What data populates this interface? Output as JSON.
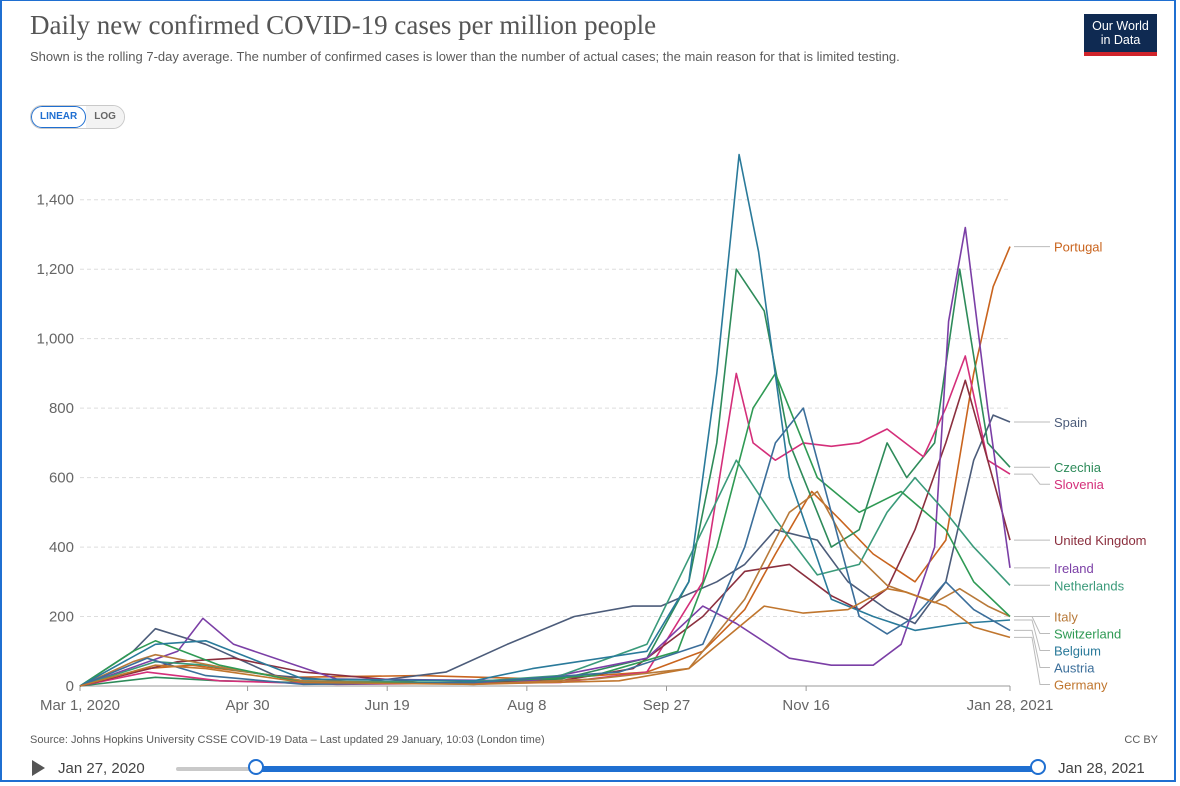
{
  "header": {
    "title": "Daily new confirmed COVID-19 cases per million people",
    "subtitle": "Shown is the rolling 7-day average. The number of confirmed cases is lower than the number of actual cases; the main reason for that is limited testing.",
    "logo_line1": "Our World",
    "logo_line2": "in Data"
  },
  "scale_toggle": {
    "linear_label": "LINEAR",
    "log_label": "LOG",
    "selected": "LINEAR"
  },
  "footer": {
    "source": "Source: Johns Hopkins University CSSE COVID-19 Data – Last updated 29 January, 10:03 (London time)",
    "license": "CC BY"
  },
  "timeline": {
    "start_label": "Jan 27, 2020",
    "end_label": "Jan 28, 2021",
    "range_start_fraction": 0.093,
    "range_end_fraction": 1.0
  },
  "colors": {
    "accent": "#1f6fd1",
    "grid": "#dddddd",
    "axis": "#999999"
  },
  "chart_data": {
    "type": "line",
    "title": "Daily new confirmed COVID-19 cases per million people",
    "xlabel": "",
    "ylabel": "",
    "x_range": [
      "2020-03-01",
      "2021-01-28"
    ],
    "ylim": [
      0,
      1500
    ],
    "y_ticks": [
      0,
      200,
      400,
      600,
      800,
      1000,
      1200,
      1400
    ],
    "y_tick_labels": [
      "0",
      "200",
      "400",
      "600",
      "800",
      "1,000",
      "1,200",
      "1,400"
    ],
    "x_ticks": [
      "2020-03-01",
      "2020-04-30",
      "2020-06-19",
      "2020-08-08",
      "2020-09-27",
      "2020-11-16",
      "2021-01-28"
    ],
    "x_tick_labels": [
      "Mar 1, 2020",
      "Apr 30",
      "Jun 19",
      "Aug 8",
      "Sep 27",
      "Nov 16",
      "Jan 28, 2021"
    ],
    "grid": "horizontal dashed",
    "legend": "right, line-end labels",
    "series": [
      {
        "name": "Portugal",
        "color": "#c9641e",
        "x": [
          "2020-03-01",
          "2020-03-25",
          "2020-04-10",
          "2020-05-15",
          "2020-07-01",
          "2020-08-15",
          "2020-09-20",
          "2020-10-10",
          "2020-10-25",
          "2020-11-05",
          "2020-11-18",
          "2020-11-28",
          "2020-12-10",
          "2020-12-25",
          "2021-01-05",
          "2021-01-15",
          "2021-01-22",
          "2021-01-28"
        ],
        "y": [
          0,
          50,
          60,
          25,
          30,
          20,
          40,
          100,
          220,
          380,
          560,
          480,
          380,
          300,
          420,
          900,
          1150,
          1265
        ]
      },
      {
        "name": "Spain",
        "color": "#4c5c7a",
        "x": [
          "2020-03-01",
          "2020-03-20",
          "2020-03-28",
          "2020-04-15",
          "2020-05-10",
          "2020-06-10",
          "2020-07-10",
          "2020-08-01",
          "2020-08-25",
          "2020-09-15",
          "2020-09-25",
          "2020-10-15",
          "2020-10-25",
          "2020-11-05",
          "2020-11-20",
          "2020-12-01",
          "2020-12-15",
          "2020-12-25",
          "2021-01-05",
          "2021-01-15",
          "2021-01-22",
          "2021-01-28"
        ],
        "y": [
          0,
          100,
          165,
          120,
          30,
          10,
          40,
          120,
          200,
          230,
          230,
          300,
          350,
          450,
          420,
          300,
          220,
          180,
          300,
          650,
          780,
          760
        ]
      },
      {
        "name": "Czechia",
        "color": "#2e8b5a",
        "x": [
          "2020-03-01",
          "2020-03-28",
          "2020-04-20",
          "2020-05-20",
          "2020-07-10",
          "2020-08-20",
          "2020-09-20",
          "2020-10-05",
          "2020-10-15",
          "2020-10-22",
          "2020-11-01",
          "2020-11-10",
          "2020-11-25",
          "2020-12-05",
          "2020-12-15",
          "2020-12-22",
          "2021-01-01",
          "2021-01-10",
          "2021-01-20",
          "2021-01-28"
        ],
        "y": [
          0,
          25,
          15,
          10,
          10,
          20,
          80,
          300,
          700,
          1200,
          1080,
          700,
          400,
          450,
          700,
          600,
          700,
          1200,
          700,
          630
        ]
      },
      {
        "name": "Slovenia",
        "color": "#d42f7a",
        "x": [
          "2020-03-01",
          "2020-03-25",
          "2020-04-20",
          "2020-06-01",
          "2020-08-20",
          "2020-09-20",
          "2020-10-10",
          "2020-10-22",
          "2020-10-28",
          "2020-11-05",
          "2020-11-15",
          "2020-11-25",
          "2020-12-05",
          "2020-12-15",
          "2020-12-28",
          "2021-01-05",
          "2021-01-12",
          "2021-01-20",
          "2021-01-28"
        ],
        "y": [
          0,
          40,
          15,
          5,
          10,
          40,
          300,
          900,
          700,
          650,
          700,
          690,
          700,
          740,
          660,
          800,
          950,
          650,
          610
        ]
      },
      {
        "name": "United Kingdom",
        "color": "#8b2f3e",
        "x": [
          "2020-03-01",
          "2020-04-05",
          "2020-04-25",
          "2020-05-20",
          "2020-07-01",
          "2020-08-20",
          "2020-09-15",
          "2020-10-10",
          "2020-10-25",
          "2020-11-10",
          "2020-11-25",
          "2020-12-05",
          "2020-12-15",
          "2020-12-25",
          "2021-01-05",
          "2021-01-12",
          "2021-01-20",
          "2021-01-28"
        ],
        "y": [
          0,
          70,
          80,
          40,
          10,
          15,
          50,
          200,
          330,
          350,
          260,
          220,
          280,
          450,
          700,
          880,
          650,
          420
        ]
      },
      {
        "name": "Ireland",
        "color": "#7b3fa6",
        "x": [
          "2020-03-01",
          "2020-04-05",
          "2020-04-14",
          "2020-04-25",
          "2020-06-01",
          "2020-08-10",
          "2020-09-20",
          "2020-10-10",
          "2020-10-22",
          "2020-11-10",
          "2020-11-25",
          "2020-12-10",
          "2020-12-20",
          "2021-01-01",
          "2021-01-06",
          "2021-01-12",
          "2021-01-20",
          "2021-01-28"
        ],
        "y": [
          0,
          100,
          195,
          120,
          20,
          15,
          80,
          230,
          180,
          80,
          60,
          60,
          120,
          400,
          1050,
          1320,
          800,
          340
        ]
      },
      {
        "name": "Netherlands",
        "color": "#3a9a7a",
        "x": [
          "2020-03-01",
          "2020-03-28",
          "2020-04-15",
          "2020-05-20",
          "2020-07-15",
          "2020-08-20",
          "2020-09-20",
          "2020-10-10",
          "2020-10-22",
          "2020-11-05",
          "2020-11-20",
          "2020-12-05",
          "2020-12-15",
          "2020-12-25",
          "2021-01-05",
          "2021-01-15",
          "2021-01-28"
        ],
        "y": [
          0,
          70,
          60,
          15,
          10,
          30,
          120,
          450,
          650,
          480,
          320,
          350,
          500,
          600,
          500,
          400,
          290
        ]
      },
      {
        "name": "Italy",
        "color": "#b87a3a",
        "x": [
          "2020-03-01",
          "2020-03-20",
          "2020-03-28",
          "2020-04-20",
          "2020-05-20",
          "2020-07-20",
          "2020-09-01",
          "2020-10-05",
          "2020-10-25",
          "2020-11-10",
          "2020-11-20",
          "2020-12-01",
          "2020-12-15",
          "2021-01-01",
          "2021-01-10",
          "2021-01-20",
          "2021-01-28"
        ],
        "y": [
          0,
          70,
          90,
          55,
          15,
          5,
          20,
          50,
          250,
          500,
          560,
          400,
          290,
          240,
          280,
          230,
          200
        ]
      },
      {
        "name": "Switzerland",
        "color": "#2f9a54",
        "x": [
          "2020-03-01",
          "2020-03-20",
          "2020-03-28",
          "2020-04-20",
          "2020-05-20",
          "2020-07-20",
          "2020-09-01",
          "2020-10-01",
          "2020-10-15",
          "2020-10-28",
          "2020-11-05",
          "2020-11-20",
          "2020-12-05",
          "2020-12-20",
          "2021-01-05",
          "2021-01-15",
          "2021-01-28"
        ],
        "y": [
          0,
          100,
          130,
          60,
          10,
          10,
          30,
          100,
          400,
          800,
          900,
          600,
          500,
          560,
          450,
          300,
          200
        ]
      },
      {
        "name": "Belgium",
        "color": "#2a7a9a",
        "x": [
          "2020-03-01",
          "2020-03-28",
          "2020-04-15",
          "2020-05-20",
          "2020-07-20",
          "2020-08-10",
          "2020-09-20",
          "2020-10-05",
          "2020-10-15",
          "2020-10-23",
          "2020-10-30",
          "2020-11-10",
          "2020-11-25",
          "2020-12-10",
          "2020-12-25",
          "2021-01-10",
          "2021-01-28"
        ],
        "y": [
          0,
          120,
          130,
          20,
          15,
          50,
          100,
          300,
          900,
          1530,
          1250,
          600,
          250,
          200,
          160,
          180,
          190
        ]
      },
      {
        "name": "Austria",
        "color": "#3b6e9a",
        "x": [
          "2020-03-01",
          "2020-03-25",
          "2020-04-15",
          "2020-05-20",
          "2020-07-20",
          "2020-09-10",
          "2020-10-10",
          "2020-10-25",
          "2020-11-05",
          "2020-11-15",
          "2020-11-25",
          "2020-12-05",
          "2020-12-15",
          "2020-12-25",
          "2021-01-05",
          "2021-01-15",
          "2021-01-28"
        ],
        "y": [
          0,
          80,
          30,
          5,
          10,
          40,
          120,
          400,
          700,
          800,
          500,
          200,
          150,
          200,
          300,
          220,
          160
        ]
      },
      {
        "name": "Germany",
        "color": "#c0762e",
        "x": [
          "2020-03-01",
          "2020-03-28",
          "2020-04-15",
          "2020-05-20",
          "2020-07-20",
          "2020-09-10",
          "2020-10-05",
          "2020-10-20",
          "2020-11-01",
          "2020-11-15",
          "2020-12-01",
          "2020-12-15",
          "2020-12-22",
          "2021-01-05",
          "2021-01-15",
          "2021-01-28"
        ],
        "y": [
          0,
          60,
          50,
          10,
          5,
          15,
          50,
          150,
          230,
          210,
          220,
          280,
          270,
          230,
          170,
          140
        ]
      }
    ]
  }
}
